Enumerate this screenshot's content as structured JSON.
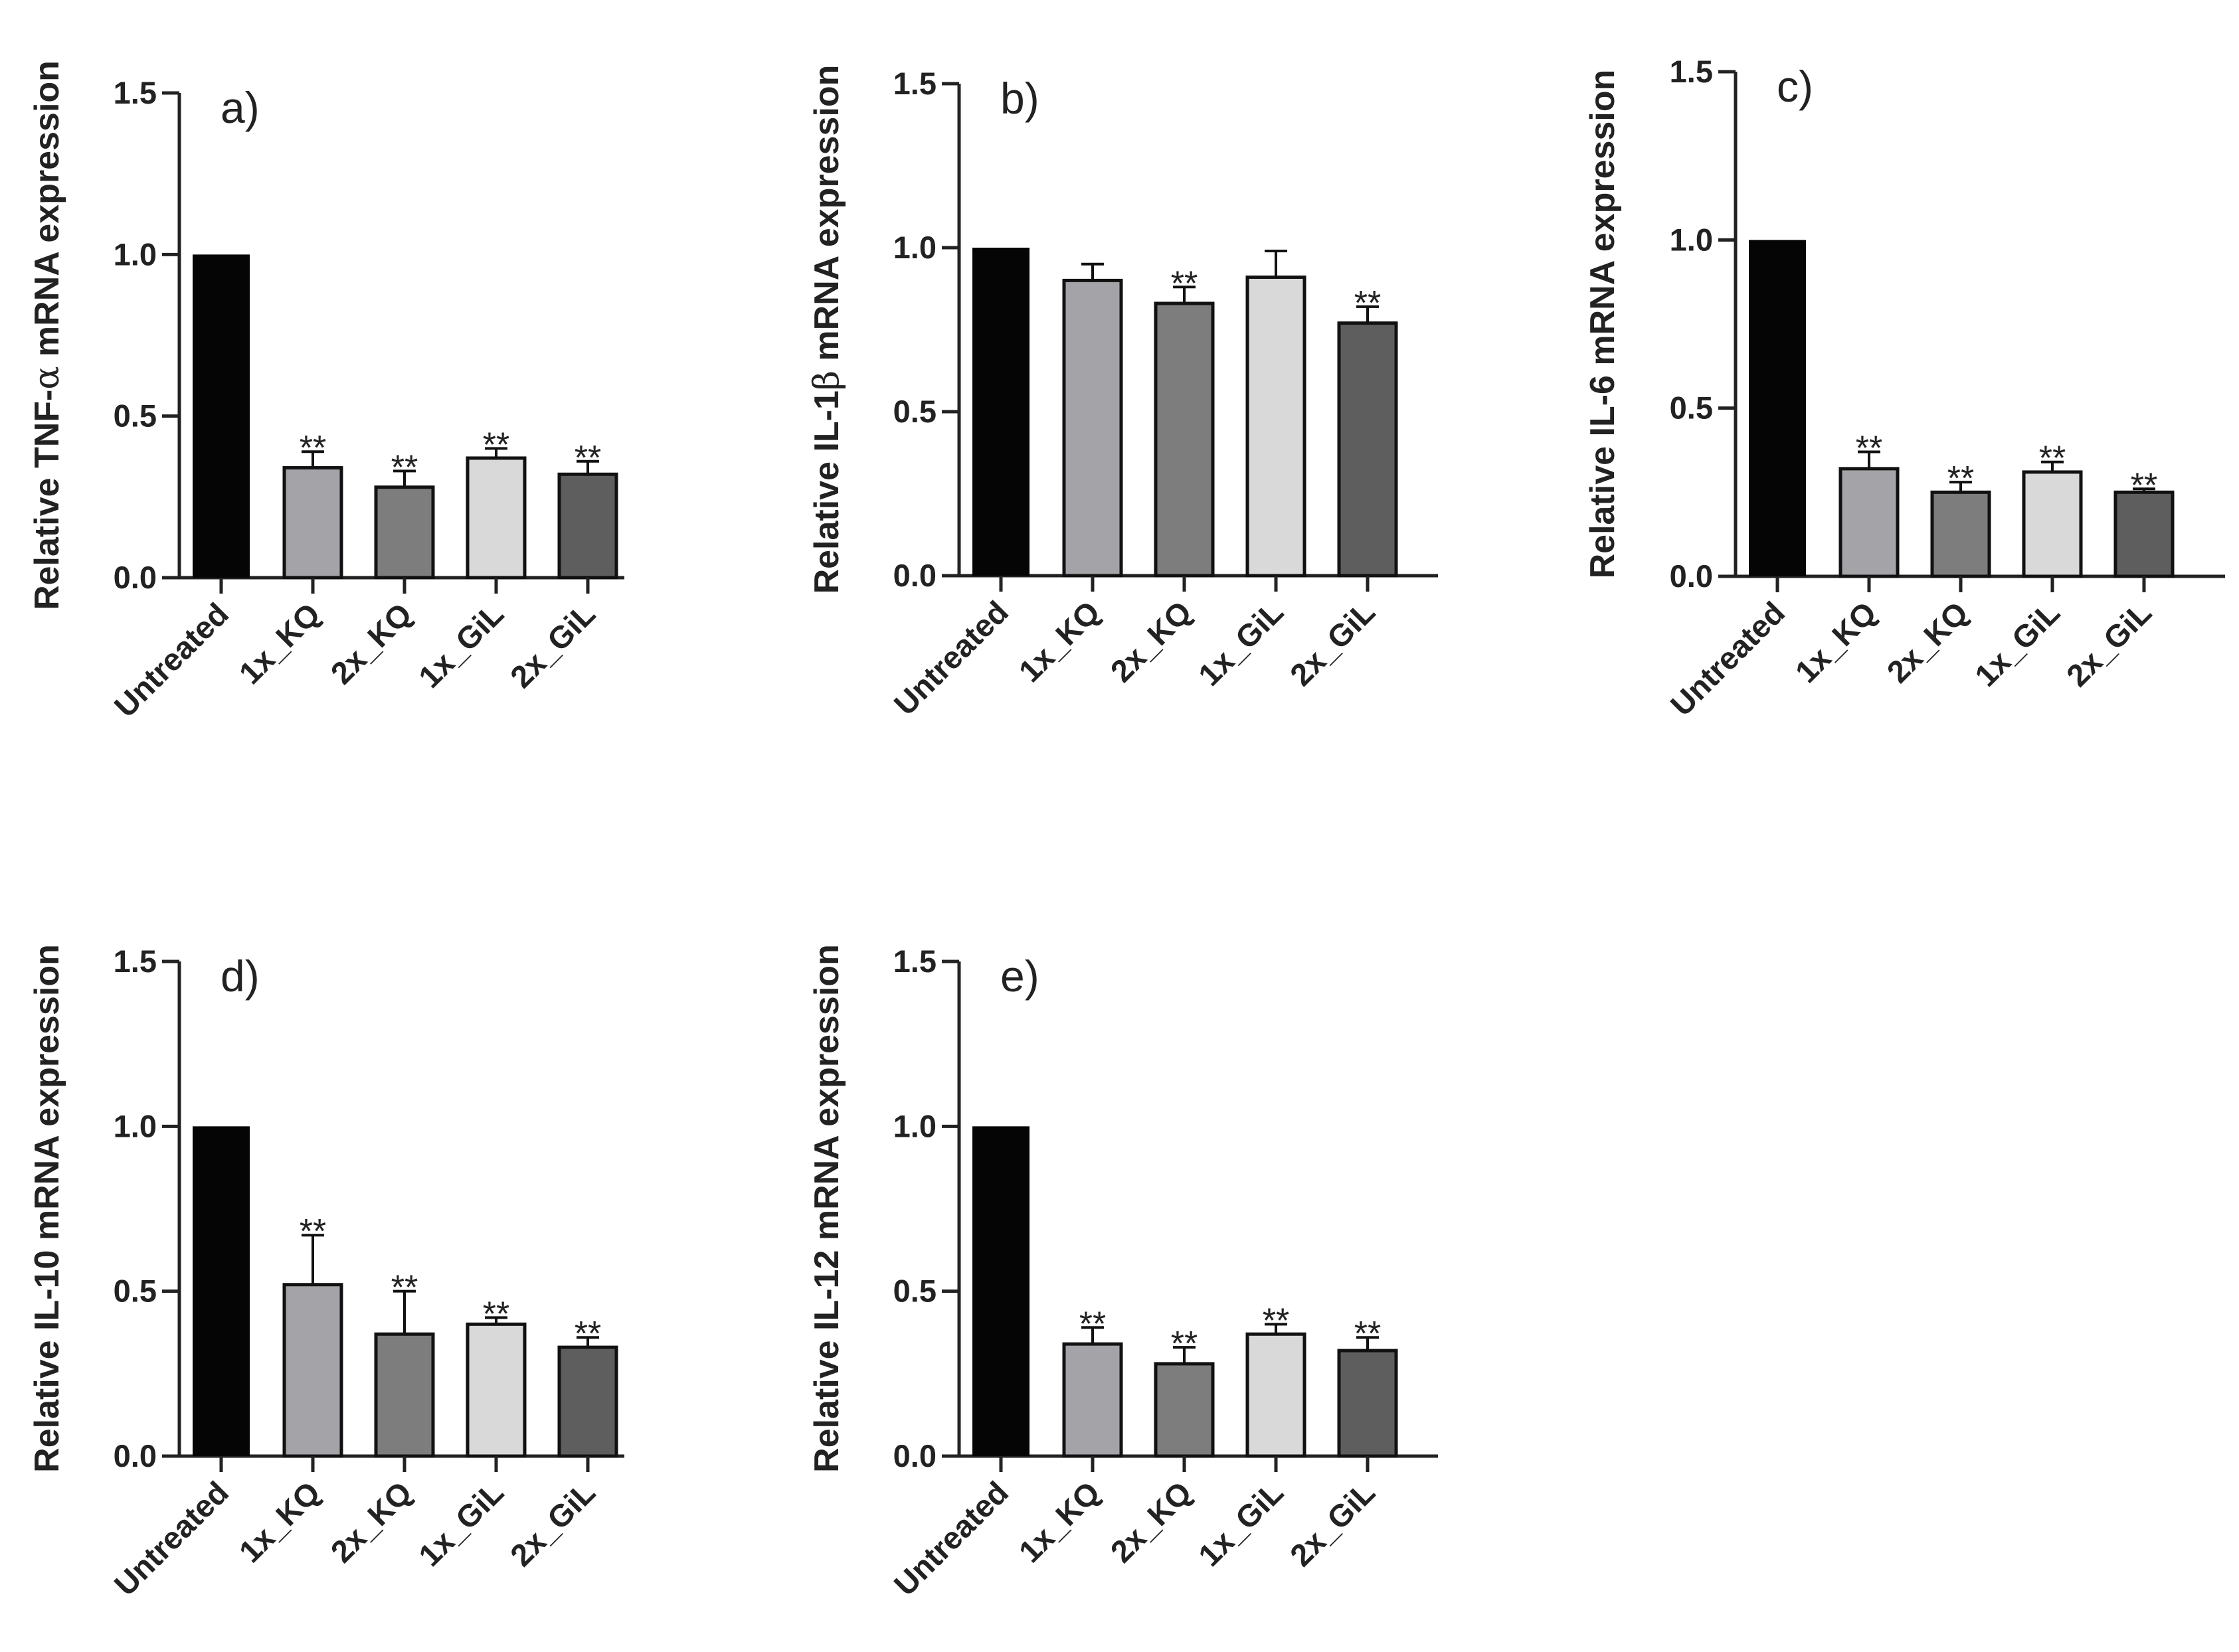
{
  "chart_data": [
    {
      "panel": "a)",
      "type": "bar",
      "ylabel_parts": [
        "Relative TNF-",
        "α",
        " mRNA expression"
      ],
      "ylim": [
        0,
        1.5
      ],
      "yticks": [
        "0.0",
        "0.5",
        "1.0",
        "1.5"
      ],
      "categories": [
        "Untreated",
        "1x_KQ",
        "2x_KQ",
        "1x_GiL",
        "2x_GiL"
      ],
      "values": [
        1.0,
        0.34,
        0.28,
        0.37,
        0.32
      ],
      "errors": [
        0,
        0.05,
        0.05,
        0.03,
        0.04
      ],
      "significance": [
        "",
        "**",
        "**",
        "**",
        "**"
      ],
      "colors": [
        "#050505",
        "#a4a4a8",
        "#7d7d7d",
        "#d9d9d9",
        "#5e5e5e"
      ]
    },
    {
      "panel": "b)",
      "type": "bar",
      "ylabel_parts": [
        "Relative IL-1",
        "β",
        " mRNA expression"
      ],
      "ylim": [
        0,
        1.5
      ],
      "yticks": [
        "0.0",
        "0.5",
        "1.0",
        "1.5"
      ],
      "categories": [
        "Untreated",
        "1x_KQ",
        "2x_KQ",
        "1x_GiL",
        "2x_GiL"
      ],
      "values": [
        1.0,
        0.9,
        0.83,
        0.91,
        0.77
      ],
      "errors": [
        0,
        0.05,
        0.05,
        0.08,
        0.05
      ],
      "significance": [
        "",
        "",
        "**",
        "",
        "**"
      ],
      "colors": [
        "#050505",
        "#a4a4a8",
        "#7d7d7d",
        "#d9d9d9",
        "#5e5e5e"
      ]
    },
    {
      "panel": "c)",
      "type": "bar",
      "ylabel_parts": [
        "Relative IL-6 mRNA expression"
      ],
      "ylim": [
        0,
        1.5
      ],
      "yticks": [
        "0.0",
        "0.5",
        "1.0",
        "1.5"
      ],
      "categories": [
        "Untreated",
        "1x_KQ",
        "2x_KQ",
        "1x_GiL",
        "2x_GiL"
      ],
      "values": [
        1.0,
        0.32,
        0.25,
        0.31,
        0.25
      ],
      "errors": [
        0,
        0.05,
        0.03,
        0.03,
        0.01
      ],
      "significance": [
        "",
        "**",
        "**",
        "**",
        "**"
      ],
      "colors": [
        "#050505",
        "#a4a4a8",
        "#7d7d7d",
        "#d9d9d9",
        "#5e5e5e"
      ]
    },
    {
      "panel": "d)",
      "type": "bar",
      "ylabel_parts": [
        "Relative IL-10 mRNA expression"
      ],
      "ylim": [
        0,
        1.5
      ],
      "yticks": [
        "0.0",
        "0.5",
        "1.0",
        "1.5"
      ],
      "categories": [
        "Untreated",
        "1x_KQ",
        "2x_KQ",
        "1x_GiL",
        "2x_GiL"
      ],
      "values": [
        1.0,
        0.52,
        0.37,
        0.4,
        0.33
      ],
      "errors": [
        0,
        0.15,
        0.13,
        0.02,
        0.03
      ],
      "significance": [
        "",
        "**",
        "**",
        "**",
        "**"
      ],
      "colors": [
        "#050505",
        "#a4a4a8",
        "#7d7d7d",
        "#d9d9d9",
        "#5e5e5e"
      ]
    },
    {
      "panel": "e)",
      "type": "bar",
      "ylabel_parts": [
        "Relative IL-12 mRNA expression"
      ],
      "ylim": [
        0,
        1.5
      ],
      "yticks": [
        "0.0",
        "0.5",
        "1.0",
        "1.5"
      ],
      "categories": [
        "Untreated",
        "1x_KQ",
        "2x_KQ",
        "1x_GiL",
        "2x_GiL"
      ],
      "values": [
        1.0,
        0.34,
        0.28,
        0.37,
        0.32
      ],
      "errors": [
        0,
        0.05,
        0.05,
        0.03,
        0.04
      ],
      "significance": [
        "",
        "**",
        "**",
        "**",
        "**"
      ],
      "colors": [
        "#050505",
        "#a4a4a8",
        "#7d7d7d",
        "#d9d9d9",
        "#5e5e5e"
      ]
    }
  ]
}
